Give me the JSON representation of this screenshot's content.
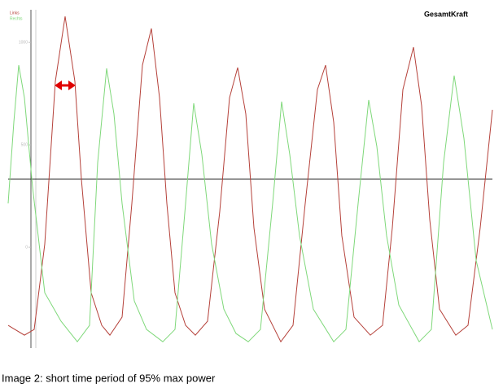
{
  "chart_data": {
    "type": "line",
    "title": "GesamtKraft",
    "caption": "Image 2: short time period of 95% max power",
    "xlim": [
      0,
      595
    ],
    "ylim": [
      -500,
      1207
    ],
    "yticks": [
      0,
      500,
      1000
    ],
    "reference_line": 333,
    "series": [
      {
        "name": "Links",
        "color": "#b5413a",
        "x": [
          0,
          20,
          32,
          45,
          58,
          70,
          82,
          90,
          102,
          115,
          125,
          140,
          152,
          165,
          176,
          186,
          195,
          205,
          218,
          230,
          245,
          260,
          272,
          282,
          292,
          302,
          315,
          335,
          350,
          365,
          380,
          390,
          400,
          410,
          425,
          445,
          460,
          472,
          485,
          498,
          508,
          518,
          530,
          550,
          565,
          580,
          595
        ],
        "values": [
          -381,
          -429,
          -401,
          16,
          810,
          1127,
          810,
          333,
          -222,
          -381,
          -429,
          -341,
          214,
          889,
          1068,
          730,
          214,
          -222,
          -381,
          -429,
          -361,
          175,
          730,
          877,
          651,
          95,
          -302,
          -461,
          -381,
          214,
          770,
          889,
          611,
          56,
          -341,
          -429,
          -381,
          95,
          770,
          977,
          691,
          135,
          -302,
          -429,
          -381,
          95,
          671
        ]
      },
      {
        "name": "Rechts",
        "color": "#7fd87a",
        "x": [
          0,
          7,
          13,
          20,
          30,
          45,
          65,
          85,
          100,
          110,
          121,
          130,
          140,
          155,
          170,
          190,
          205,
          218,
          228,
          238,
          250,
          265,
          280,
          295,
          310,
          325,
          336,
          346,
          358,
          375,
          400,
          415,
          430,
          443,
          453,
          465,
          480,
          505,
          520,
          535,
          548,
          560,
          575,
          595
        ],
        "values": [
          214,
          611,
          889,
          730,
          294,
          -222,
          -361,
          -461,
          -381,
          413,
          873,
          651,
          214,
          -262,
          -401,
          -461,
          -401,
          214,
          703,
          453,
          16,
          -302,
          -421,
          -461,
          -401,
          214,
          711,
          453,
          56,
          -302,
          -461,
          -401,
          214,
          719,
          492,
          56,
          -282,
          -461,
          -401,
          413,
          838,
          532,
          -64,
          -401
        ]
      }
    ]
  }
}
